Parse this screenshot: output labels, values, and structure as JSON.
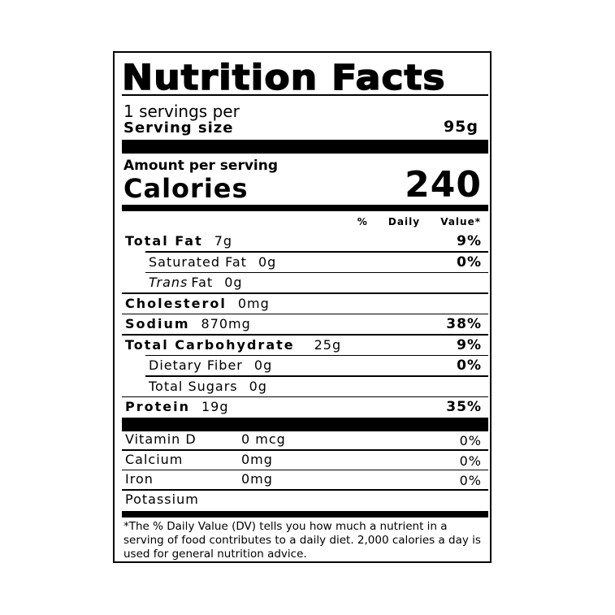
{
  "title": "Nutrition Facts",
  "servings": "1 servings per",
  "serving_size": {
    "label": "Serving size",
    "value": "95g"
  },
  "amount_per_serving": "Amount per serving",
  "calories": {
    "label": "Calories",
    "value": "240"
  },
  "dv_header": "% Daily Value*",
  "nutrients": [
    {
      "name": "Total Fat",
      "amount": "7g",
      "dv": "9%"
    },
    {
      "name": "Saturated Fat",
      "amount": "0g",
      "dv": "0%",
      "indent": true
    },
    {
      "name_italic": "Trans",
      "name": "Fat",
      "amount": "0g",
      "indent": true
    },
    {
      "name": "Cholesterol",
      "amount": "0mg"
    },
    {
      "name": "Sodium",
      "amount": "870mg",
      "dv": "38%"
    },
    {
      "name": "Total Carbohydrate",
      "amount": "25g",
      "dv": "9%"
    },
    {
      "name": "Dietary Fiber",
      "amount": "0g",
      "dv": "0%",
      "indent": true
    },
    {
      "name": "Total Sugars",
      "amount": "0g",
      "indent": true
    },
    {
      "name": "Protein",
      "amount": "19g",
      "dv": "35%"
    }
  ],
  "vitamins": [
    {
      "name": "Vitamin D",
      "amount": "0 mcg",
      "dv": "0%"
    },
    {
      "name": "Calcium",
      "amount": "0mg",
      "dv": "0%"
    },
    {
      "name": "Iron",
      "amount": "0mg",
      "dv": "0%"
    },
    {
      "name": "Potassium"
    }
  ],
  "footnote": "*The % Daily Value (DV) tells you how much a nutrient in a serving of food contributes to a daily diet. 2,000 calories a day is used for general nutrition advice."
}
